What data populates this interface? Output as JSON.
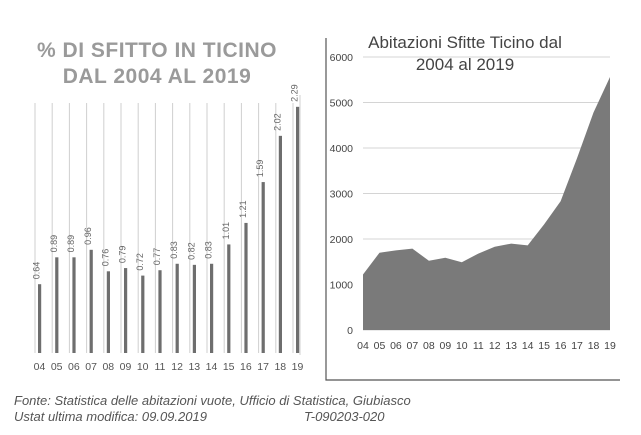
{
  "chart_data": [
    {
      "type": "bar",
      "title": "% DI SFITTO IN TICINO\nDAL 2004 AL 2019",
      "categories": [
        "04",
        "05",
        "06",
        "07",
        "08",
        "09",
        "10",
        "11",
        "12",
        "13",
        "14",
        "15",
        "16",
        "17",
        "18",
        "19"
      ],
      "values": [
        0.64,
        0.89,
        0.89,
        0.96,
        0.76,
        0.79,
        0.72,
        0.77,
        0.83,
        0.82,
        0.83,
        1.01,
        1.21,
        1.59,
        2.02,
        2.29
      ],
      "value_labels": [
        "0.64",
        "0.89",
        "0.89",
        "0.96",
        "0.76",
        "0.79",
        "0.72",
        "0.77",
        "0.83",
        "0.82",
        "0.83",
        "1.01",
        "1.21",
        "1.59",
        "2.02",
        "2.29"
      ],
      "xlabel": "",
      "ylabel": "",
      "ylim": [
        0,
        2.4
      ],
      "grid": "vertical",
      "colors": {
        "bar": "#6e6e6e",
        "gridline": "#cfcfcf",
        "title": "#9a9a9a"
      }
    },
    {
      "type": "area",
      "title": "Abitazioni Sfitte Ticino dal 2004 al 2019",
      "categories": [
        "04",
        "05",
        "06",
        "07",
        "08",
        "09",
        "10",
        "11",
        "12",
        "13",
        "14",
        "15",
        "16",
        "17",
        "18",
        "19"
      ],
      "values": [
        1220,
        1700,
        1750,
        1790,
        1520,
        1590,
        1490,
        1680,
        1830,
        1900,
        1860,
        2320,
        2830,
        3780,
        4780,
        5560
      ],
      "yticks": [
        "0",
        "1000",
        "2000",
        "3000",
        "4000",
        "5000",
        "6000"
      ],
      "xlabel": "",
      "ylabel": "",
      "ylim": [
        0,
        6000
      ],
      "grid": "horizontal",
      "colors": {
        "area": "#7a7a7a",
        "gridline": "#d4d4d4",
        "frame": "#555555"
      }
    }
  ],
  "footer": {
    "line1": "Fonte: Statistica delle abitazioni vuote, Ufficio di Statistica, Giubiasco",
    "line2": "Ustat ultima modifica: 09.09.2019",
    "code": "T-090203-020"
  }
}
